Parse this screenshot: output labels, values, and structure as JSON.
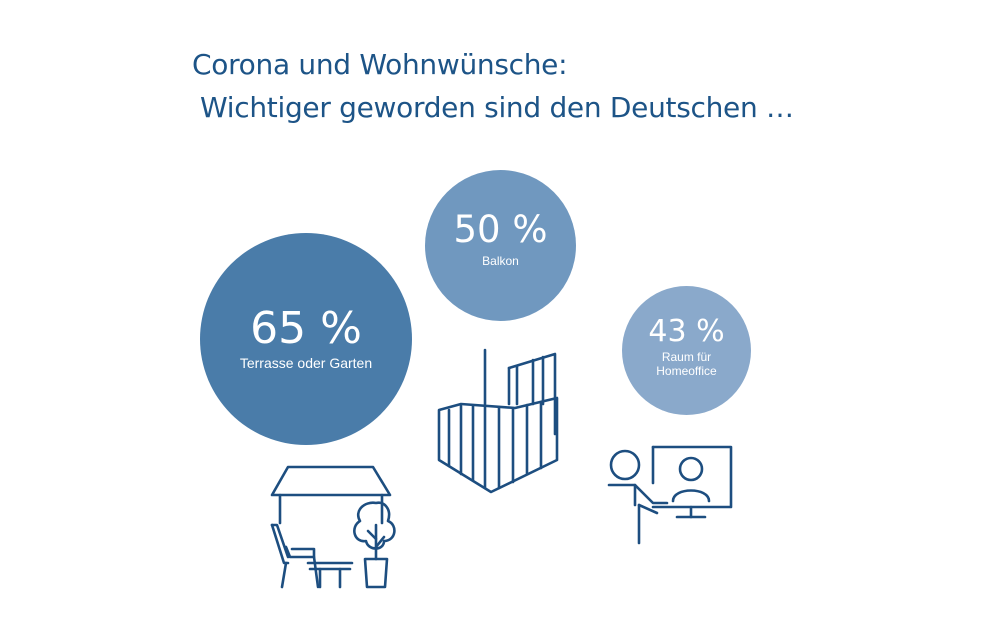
{
  "title_line1": "Corona und Wohnwünsche:",
  "title_line2": "Wichtiger geworden sind den Deutschen …",
  "colors": {
    "title": "#1d5487",
    "bubble_terrace": "#4a7ca9",
    "bubble_balcony": "#7098bf",
    "bubble_office": "#8aa9cb",
    "icon_stroke": "#1d4e80"
  },
  "chart_data": {
    "type": "bubble",
    "title": "Corona und Wohnwünsche: Wichtiger geworden sind den Deutschen …",
    "unit": "%",
    "categories": [
      "Terrasse oder Garten",
      "Balkon",
      "Raum für Homeoffice"
    ],
    "values": [
      65,
      50,
      43
    ],
    "value_labels": [
      "65 %",
      "50 %",
      "43 %"
    ],
    "icons": [
      "terrace-garden-icon",
      "balcony-icon",
      "homeoffice-icon"
    ]
  }
}
